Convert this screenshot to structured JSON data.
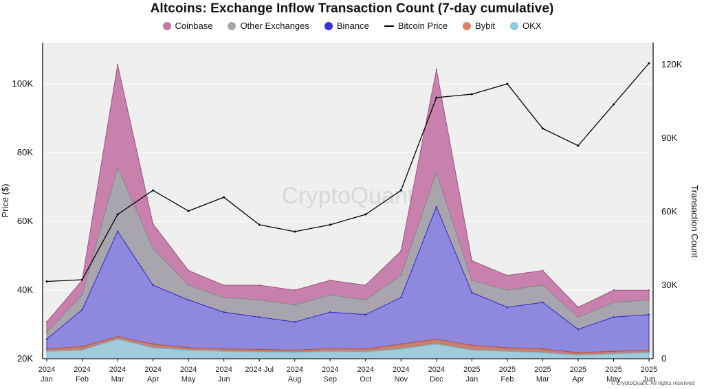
{
  "chart_data": {
    "type": "area",
    "title": "Altcoins: Exchange Inflow Transaction Count (7-day cumulative)",
    "watermark": "CryptoQuant",
    "footer": "© CryptoQuant. All rights reserved",
    "legend_position": "top",
    "left_axis": {
      "label": "Price ($)",
      "min": 20000,
      "max": 112000,
      "ticks": [
        {
          "v": 20000,
          "t": "20K"
        },
        {
          "v": 40000,
          "t": "40K"
        },
        {
          "v": 60000,
          "t": "60K"
        },
        {
          "v": 80000,
          "t": "80K"
        },
        {
          "v": 100000,
          "t": "100K"
        }
      ]
    },
    "right_axis": {
      "label": "Transaction Count",
      "min": 0,
      "max": 129000,
      "ticks": [
        {
          "v": 0,
          "t": "0"
        },
        {
          "v": 30000,
          "t": "30K"
        },
        {
          "v": 60000,
          "t": "60K"
        },
        {
          "v": 90000,
          "t": "90K"
        },
        {
          "v": 120000,
          "t": "120K"
        }
      ]
    },
    "x_labels": [
      {
        "year": "2024",
        "month": "Jan"
      },
      {
        "year": "2024",
        "month": "Feb"
      },
      {
        "year": "2024",
        "month": "Mar"
      },
      {
        "year": "2024",
        "month": "Apr"
      },
      {
        "year": "2024",
        "month": "May"
      },
      {
        "year": "2024",
        "month": "Jun"
      },
      {
        "year": "2024 Jul",
        "month": ""
      },
      {
        "year": "2024",
        "month": "Aug"
      },
      {
        "year": "2024",
        "month": "Sep"
      },
      {
        "year": "2024",
        "month": "Oct"
      },
      {
        "year": "2024",
        "month": "Nov"
      },
      {
        "year": "2024",
        "month": "Dec"
      },
      {
        "year": "2025",
        "month": "Jan"
      },
      {
        "year": "2025",
        "month": "Feb"
      },
      {
        "year": "2025",
        "month": "Mar"
      },
      {
        "year": "2025",
        "month": "Apr"
      },
      {
        "year": "2025",
        "month": "May"
      },
      {
        "year": "2025",
        "month": "Jun"
      }
    ],
    "x": [
      "2024-01",
      "2024-02",
      "2024-03",
      "2024-04",
      "2024-05",
      "2024-06",
      "2024-07",
      "2024-08",
      "2024-09",
      "2024-10",
      "2024-11",
      "2024-12",
      "2025-01",
      "2025-02",
      "2025-03",
      "2025-04",
      "2025-05",
      "2025-06"
    ],
    "series": [
      {
        "name": "Coinbase",
        "color": "#c47aa8",
        "values": [
          15000,
          32000,
          120000,
          55000,
          36000,
          30000,
          30000,
          28000,
          32000,
          30000,
          44000,
          118000,
          40000,
          34000,
          36000,
          21000,
          28000,
          28000
        ]
      },
      {
        "name": "Other Exchanges",
        "color": "#a7a7ae",
        "values": [
          11000,
          26000,
          78000,
          45000,
          30000,
          25000,
          24000,
          22000,
          26000,
          24000,
          34000,
          76000,
          32000,
          28000,
          30000,
          17000,
          23000,
          24000
        ]
      },
      {
        "name": "Binance",
        "color": "#8c86e0",
        "values": [
          8000,
          20000,
          52000,
          30000,
          24000,
          19000,
          17000,
          15000,
          19000,
          18000,
          25000,
          62000,
          27000,
          21000,
          23000,
          12000,
          17000,
          18000
        ]
      },
      {
        "name": "Bybit",
        "color": "#c97e6e",
        "values": [
          4000,
          5000,
          9000,
          6000,
          4500,
          4000,
          3800,
          3500,
          4200,
          4000,
          6000,
          8000,
          5500,
          4500,
          4000,
          2500,
          3000,
          3500
        ]
      },
      {
        "name": "OKX",
        "color": "#9fd0e0",
        "values": [
          3000,
          3500,
          8000,
          4500,
          3500,
          3000,
          2800,
          2600,
          3000,
          2800,
          4000,
          6000,
          3500,
          3000,
          2500,
          1500,
          2000,
          2500
        ]
      },
      {
        "name": "Bitcoin Price",
        "color": "#000000",
        "axis": "left",
        "values": [
          42500,
          43000,
          62000,
          69000,
          63000,
          67000,
          59000,
          57000,
          59000,
          62000,
          69000,
          96000,
          97000,
          100000,
          87000,
          82000,
          94000,
          106000
        ]
      }
    ]
  }
}
